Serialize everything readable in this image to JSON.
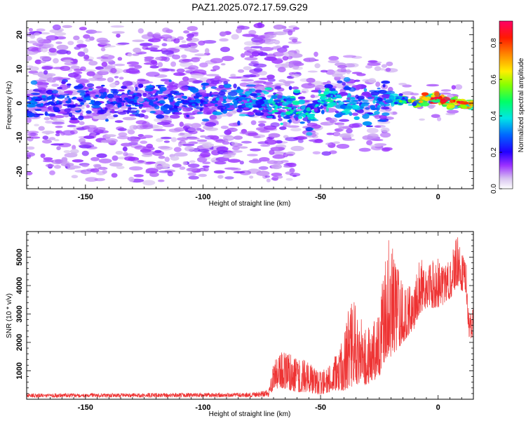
{
  "title": "PAZ1.2025.072.17.59.G29",
  "chart_data": [
    {
      "type": "heatmap",
      "xlabel": "Height of straight line (km)",
      "ylabel": "Frequency (Hz)",
      "xlim": [
        -175,
        15
      ],
      "ylim": [
        -25,
        24
      ],
      "x_ticks": [
        -150,
        -100,
        -50,
        0
      ],
      "y_ticks": [
        -20,
        -10,
        0,
        10,
        20
      ],
      "colorbar": {
        "label": "Normalized spectral amplitude",
        "range": [
          0,
          0.92
        ],
        "ticks": [
          0.0,
          0.2,
          0.4,
          0.6,
          0.8
        ],
        "tick_labels": [
          "0.0",
          "0.2",
          "0.4",
          "0.6",
          "0.8"
        ]
      },
      "ridge": [
        {
          "x": -172,
          "f": 0.5,
          "amp": 0.28
        },
        {
          "x": -165,
          "f": 1.0,
          "amp": 0.26
        },
        {
          "x": -155,
          "f": 0.8,
          "amp": 0.25
        },
        {
          "x": -145,
          "f": 1.0,
          "amp": 0.27
        },
        {
          "x": -135,
          "f": 0.2,
          "amp": 0.24
        },
        {
          "x": -125,
          "f": 0.5,
          "amp": 0.28
        },
        {
          "x": -115,
          "f": 1.0,
          "amp": 0.26
        },
        {
          "x": -105,
          "f": 0.6,
          "amp": 0.27
        },
        {
          "x": -95,
          "f": 0.5,
          "amp": 0.3
        },
        {
          "x": -85,
          "f": 0.3,
          "amp": 0.31
        },
        {
          "x": -75,
          "f": 0.6,
          "amp": 0.34
        },
        {
          "x": -68,
          "f": -1.0,
          "amp": 0.4
        },
        {
          "x": -60,
          "f": -2.0,
          "amp": 0.43
        },
        {
          "x": -55,
          "f": -4.5,
          "amp": 0.38
        },
        {
          "x": -48,
          "f": 2.0,
          "amp": 0.4
        },
        {
          "x": -40,
          "f": 1.5,
          "amp": 0.36
        },
        {
          "x": -30,
          "f": -1.5,
          "amp": 0.33
        },
        {
          "x": -20,
          "f": 1.5,
          "amp": 0.3
        },
        {
          "x": -15,
          "f": 0.5,
          "amp": 0.55
        },
        {
          "x": -10,
          "f": 0.2,
          "amp": 0.65
        },
        {
          "x": -5,
          "f": 1.2,
          "amp": 0.72
        },
        {
          "x": 0,
          "f": 1.5,
          "amp": 0.8
        },
        {
          "x": 5,
          "f": 0.5,
          "amp": 0.84
        },
        {
          "x": 10,
          "f": 0.0,
          "amp": 0.86
        },
        {
          "x": 15,
          "f": -0.2,
          "amp": 0.78
        }
      ]
    },
    {
      "type": "line",
      "xlabel": "Height of straight line (km)",
      "ylabel": "SNR (10 * v/v)",
      "xlim": [
        -175,
        15
      ],
      "ylim": [
        0,
        5900
      ],
      "x_ticks": [
        -150,
        -100,
        -50,
        0
      ],
      "y_ticks": [
        1000,
        2000,
        3000,
        4000,
        5000
      ],
      "color": "#ee3333",
      "envelope": [
        {
          "x": -175,
          "low": 60,
          "high": 200
        },
        {
          "x": -80,
          "low": 70,
          "high": 230
        },
        {
          "x": -72,
          "low": 80,
          "high": 320
        },
        {
          "x": -70,
          "low": 350,
          "high": 1300
        },
        {
          "x": -67,
          "low": 400,
          "high": 1750
        },
        {
          "x": -60,
          "low": 250,
          "high": 1500
        },
        {
          "x": -55,
          "low": 250,
          "high": 1300
        },
        {
          "x": -50,
          "low": 150,
          "high": 1000
        },
        {
          "x": -45,
          "low": 300,
          "high": 1300
        },
        {
          "x": -40,
          "low": 300,
          "high": 2300
        },
        {
          "x": -38,
          "low": 400,
          "high": 3300
        },
        {
          "x": -35,
          "low": 500,
          "high": 3500
        },
        {
          "x": -30,
          "low": 500,
          "high": 2500
        },
        {
          "x": -25,
          "low": 800,
          "high": 3000
        },
        {
          "x": -22,
          "low": 1500,
          "high": 5700
        },
        {
          "x": -20,
          "low": 1500,
          "high": 5500
        },
        {
          "x": -15,
          "low": 2000,
          "high": 4000
        },
        {
          "x": -10,
          "low": 2500,
          "high": 4300
        },
        {
          "x": -8,
          "low": 3000,
          "high": 5000
        },
        {
          "x": -5,
          "low": 3200,
          "high": 4800
        },
        {
          "x": 0,
          "low": 3200,
          "high": 5000
        },
        {
          "x": 5,
          "low": 3500,
          "high": 4800
        },
        {
          "x": 8,
          "low": 4000,
          "high": 5900
        },
        {
          "x": 10,
          "low": 3800,
          "high": 5200
        },
        {
          "x": 12,
          "low": 3500,
          "high": 4900
        },
        {
          "x": 13,
          "low": 2200,
          "high": 3100
        },
        {
          "x": 15,
          "low": 2000,
          "high": 3200
        }
      ]
    }
  ]
}
